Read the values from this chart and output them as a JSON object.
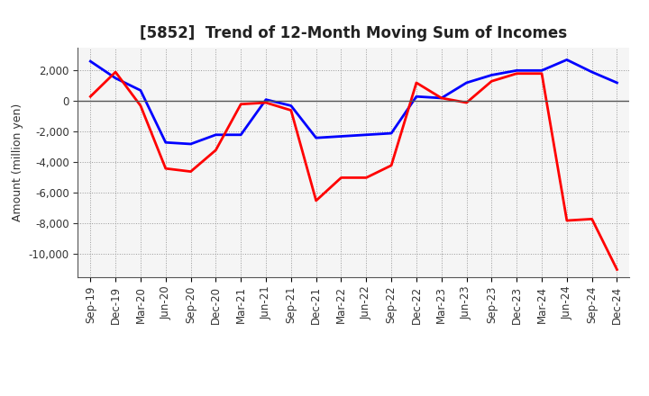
{
  "title": "[5852]  Trend of 12-Month Moving Sum of Incomes",
  "ylabel": "Amount (million yen)",
  "x_labels": [
    "Sep-19",
    "Dec-19",
    "Mar-20",
    "Jun-20",
    "Sep-20",
    "Dec-20",
    "Mar-21",
    "Jun-21",
    "Sep-21",
    "Dec-21",
    "Mar-22",
    "Jun-22",
    "Sep-22",
    "Dec-22",
    "Mar-23",
    "Jun-23",
    "Sep-23",
    "Dec-23",
    "Mar-24",
    "Jun-24",
    "Sep-24",
    "Dec-24"
  ],
  "ordinary_income": [
    2600,
    1500,
    700,
    -2700,
    -2800,
    -2200,
    -2200,
    100,
    -300,
    -2400,
    -2300,
    -2200,
    -2100,
    300,
    200,
    1200,
    1700,
    2000,
    2000,
    2700,
    1900,
    1200
  ],
  "net_income": [
    300,
    1900,
    -300,
    -4400,
    -4600,
    -3200,
    -200,
    -100,
    -600,
    -6500,
    -5000,
    -5000,
    -4200,
    1200,
    200,
    -100,
    1300,
    1800,
    1800,
    -7800,
    -7700,
    -11000
  ],
  "ordinary_income_color": "#0000FF",
  "net_income_color": "#FF0000",
  "line_width": 2.0,
  "ylim": [
    -11500,
    3500
  ],
  "yticks": [
    -10000,
    -8000,
    -6000,
    -4000,
    -2000,
    0,
    2000
  ],
  "background_color": "#FFFFFF",
  "grid_color": "#999999",
  "title_fontsize": 12,
  "axis_fontsize": 8.5,
  "ylabel_fontsize": 9
}
